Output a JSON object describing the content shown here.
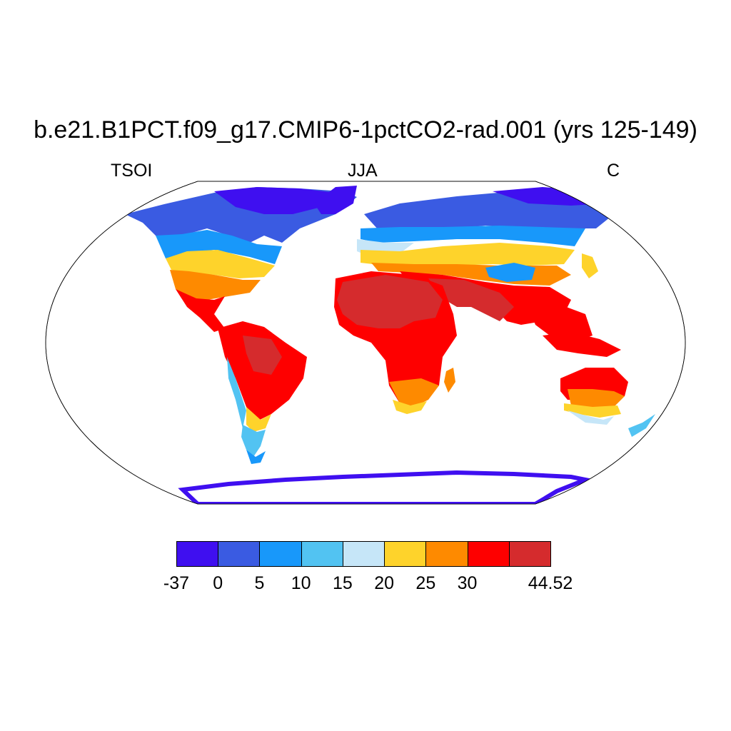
{
  "title": "b.e21.B1PCT.f09_g17.CMIP6-1pctCO2-rad.001 (yrs 125-149)",
  "labels": {
    "left": "TSOI",
    "center": "JJA",
    "right": "C"
  },
  "colorbar": {
    "colors": [
      "#3f0ff0",
      "#3a5be2",
      "#1898fa",
      "#52c3f2",
      "#c6e6f8",
      "#fed32b",
      "#fe8a00",
      "#fe0000",
      "#d52b2d"
    ],
    "tick_labels": [
      "-37",
      "0",
      "5",
      "10",
      "15",
      "20",
      "25",
      "30",
      "44.52"
    ]
  }
}
